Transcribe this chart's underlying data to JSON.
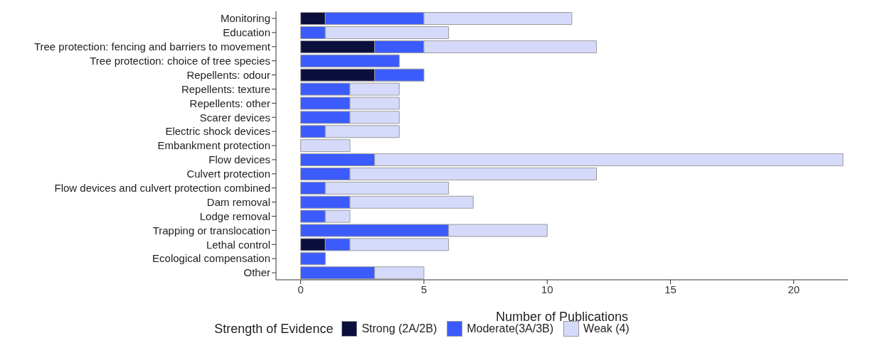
{
  "chart_data": {
    "type": "bar",
    "orientation": "horizontal",
    "stacked": true,
    "xlabel": "Number of Publications",
    "legend_title": "Strength of Evidence",
    "legend": "bottom",
    "categories": [
      "Monitoring",
      "Education",
      "Tree protection: fencing and barriers to movement",
      "Tree protection: choice of tree species",
      "Repellents: odour",
      "Repellents: texture",
      "Repellents: other",
      "Scarer devices",
      "Electric shock devices",
      "Embankment protection",
      "Flow devices",
      "Culvert protection",
      "Flow devices and culvert protection combined",
      "Dam removal",
      "Lodge removal",
      "Trapping or translocation",
      "Lethal control",
      "Ecological compensation",
      "Other"
    ],
    "series": [
      {
        "name": "Strong (2A/2B)",
        "color": "#0a0f3d",
        "values": [
          1,
          null,
          3,
          null,
          3,
          null,
          null,
          null,
          null,
          null,
          null,
          null,
          null,
          null,
          null,
          null,
          1,
          null,
          null
        ]
      },
      {
        "name": "Moderate(3A/3B)",
        "color": "#3b5bfd",
        "values": [
          4,
          1,
          2,
          4,
          2,
          2,
          2,
          2,
          1,
          null,
          3,
          2,
          1,
          2,
          1,
          6,
          1,
          1,
          3
        ]
      },
      {
        "name": "Weak (4)",
        "color": "#d6dafa",
        "values": [
          6,
          5,
          7,
          null,
          null,
          2,
          2,
          2,
          3,
          2,
          19,
          10,
          5,
          5,
          1,
          4,
          4,
          null,
          2
        ]
      }
    ],
    "xlim": [
      -1,
      22.2
    ],
    "xticks": [
      0,
      5,
      10,
      15,
      20
    ]
  }
}
